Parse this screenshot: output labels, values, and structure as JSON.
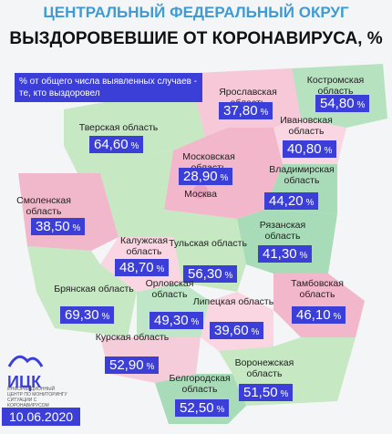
{
  "header": {
    "title": "ЦЕНТРАЛЬНЫЙ ФЕДЕРАЛЬНЫЙ ОКРУГ",
    "subtitle": "ВЫЗДОРОВЕВШИЕ ОТ КОРОНАВИРУСА, %"
  },
  "note": "% от общего числа выявленных случаев - те, кто выздоровел",
  "unit": "%",
  "regions": [
    {
      "name": "Ярославская область",
      "value": "37,80"
    },
    {
      "name": "Костромская область",
      "value": "54,80"
    },
    {
      "name": "Ивановская область",
      "value": "40,80"
    },
    {
      "name": "Тверская область",
      "value": "64,60"
    },
    {
      "name": "Московская область",
      "value": "28,90"
    },
    {
      "name": "Москва"
    },
    {
      "name": "Владимирская область",
      "value": "44,20"
    },
    {
      "name": "Смоленская область",
      "value": "38,50"
    },
    {
      "name": "Рязанская область",
      "value": "41,30"
    },
    {
      "name": "Калужская область",
      "value": "48,70"
    },
    {
      "name": "Тульская область",
      "value": "56,30"
    },
    {
      "name": "Брянская область",
      "value": "69,30"
    },
    {
      "name": "Орловская область",
      "value": "49,30"
    },
    {
      "name": "Тамбовская область",
      "value": "46,10"
    },
    {
      "name": "Липецкая область",
      "value": "39,60"
    },
    {
      "name": "Курская область",
      "value": "52,90"
    },
    {
      "name": "Воронежская область",
      "value": "51,50"
    },
    {
      "name": "Белгородская область",
      "value": "52,50"
    }
  ],
  "logo": {
    "name": "ИЦК",
    "caption": "ИНФОРМАЦИОННЫЙ ЦЕНТР ПО МОНИТОРИНГУ СИТУАЦИИ С КОРОНАВИРУСОМ"
  },
  "date": "10.06.2020"
}
